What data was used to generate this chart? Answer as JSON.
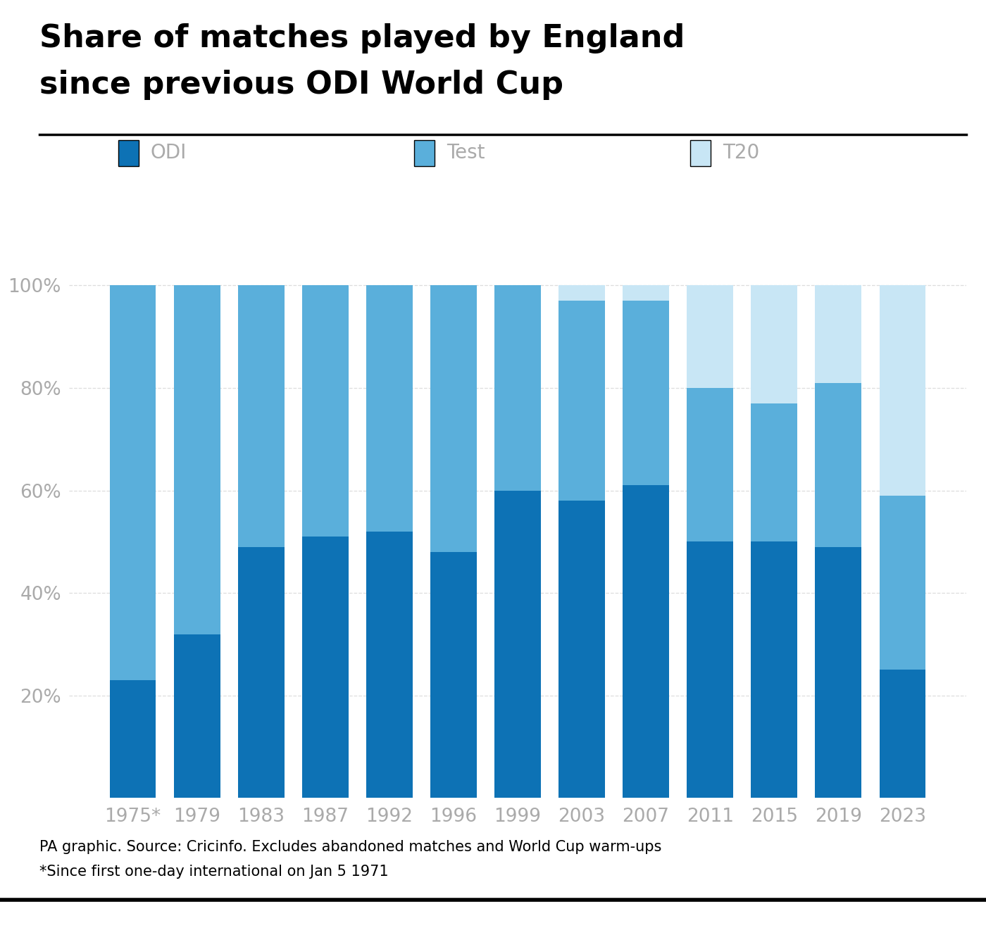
{
  "categories": [
    "1975*",
    "1979",
    "1983",
    "1987",
    "1992",
    "1996",
    "1999",
    "2003",
    "2007",
    "2011",
    "2015",
    "2019",
    "2023"
  ],
  "odi": [
    23,
    32,
    49,
    51,
    52,
    48,
    60,
    58,
    61,
    50,
    50,
    49,
    25
  ],
  "test": [
    77,
    68,
    51,
    49,
    48,
    52,
    40,
    39,
    36,
    30,
    27,
    32,
    34
  ],
  "t20": [
    0,
    0,
    0,
    0,
    0,
    0,
    0,
    3,
    3,
    20,
    23,
    19,
    41
  ],
  "color_odi": "#0d72b5",
  "color_test": "#5aafdb",
  "color_t20": "#c8e6f5",
  "title_line1": "Share of matches played by England",
  "title_line2": "since previous ODI World Cup",
  "footnote1": "PA graphic. Source: Cricinfo. Excludes abandoned matches and World Cup warm-ups",
  "footnote2": "*Since first one-day international on Jan 5 1971",
  "background_color": "#ffffff",
  "title_color": "#000000",
  "axis_label_color": "#aaaaaa",
  "footnote_color": "#000000",
  "grid_color": "#dddddd",
  "bar_width": 0.72,
  "ylim": [
    0,
    105
  ],
  "yticks": [
    20,
    40,
    60,
    80,
    100
  ],
  "ytick_labels": [
    "20%",
    "40%",
    "60%",
    "80%",
    "100%"
  ]
}
